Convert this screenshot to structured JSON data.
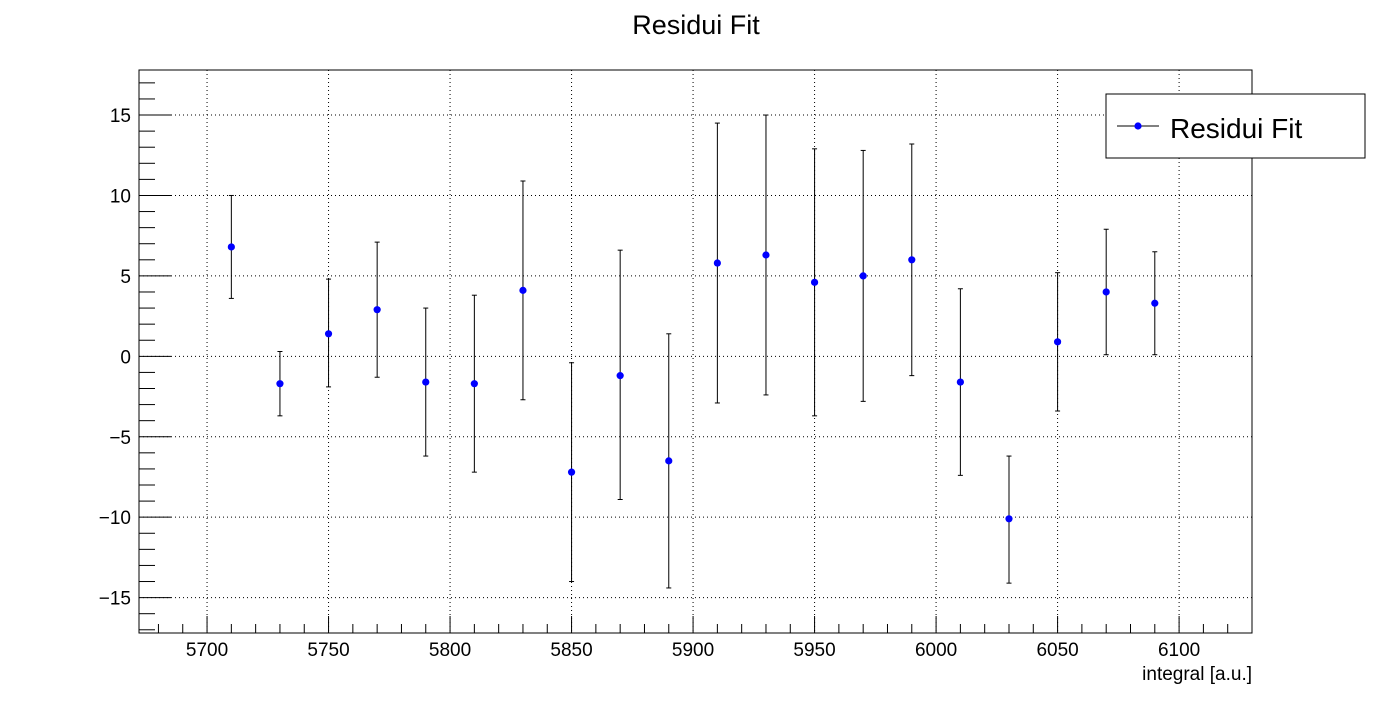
{
  "chart_data": {
    "type": "scatter",
    "title": "Residui Fit",
    "xlabel": "integral [a.u.]",
    "ylabel": "",
    "xlim": [
      5672,
      6130
    ],
    "ylim": [
      -17.2,
      17.8
    ],
    "x_ticks": [
      5700,
      5750,
      5800,
      5850,
      5900,
      5950,
      6000,
      6050,
      6100
    ],
    "x_tick_labels": [
      "5700",
      "5750",
      "5800",
      "5850",
      "5900",
      "5950",
      "6000",
      "6050",
      "6100"
    ],
    "y_ticks": [
      -15,
      -10,
      -5,
      0,
      5,
      10,
      15
    ],
    "y_tick_labels": [
      "−15",
      "−10",
      "−5",
      "0",
      "5",
      "10",
      "15"
    ],
    "grid": true,
    "legend_position": "top-right",
    "series": [
      {
        "name": "Residui Fit",
        "color": "#0000ff",
        "x": [
          5710,
          5730,
          5750,
          5770,
          5790,
          5810,
          5830,
          5850,
          5870,
          5890,
          5910,
          5930,
          5950,
          5970,
          5990,
          6010,
          6030,
          6050,
          6070,
          6090
        ],
        "y": [
          6.8,
          -1.7,
          1.4,
          2.9,
          -1.6,
          -1.7,
          4.1,
          -7.2,
          -1.2,
          -6.5,
          5.8,
          6.3,
          4.6,
          5.0,
          6.0,
          -1.6,
          -10.1,
          0.9,
          4.0,
          3.3
        ],
        "err_low": [
          3.2,
          2.0,
          3.3,
          4.2,
          4.6,
          5.5,
          6.8,
          6.8,
          7.7,
          7.9,
          8.7,
          8.7,
          8.3,
          7.8,
          7.2,
          5.8,
          4.0,
          4.3,
          3.9,
          3.2
        ],
        "err_high": [
          3.2,
          2.0,
          3.4,
          4.2,
          4.6,
          5.5,
          6.8,
          6.8,
          7.8,
          7.9,
          8.7,
          8.7,
          8.3,
          7.8,
          7.2,
          5.8,
          3.9,
          4.3,
          3.9,
          3.2
        ]
      }
    ]
  }
}
